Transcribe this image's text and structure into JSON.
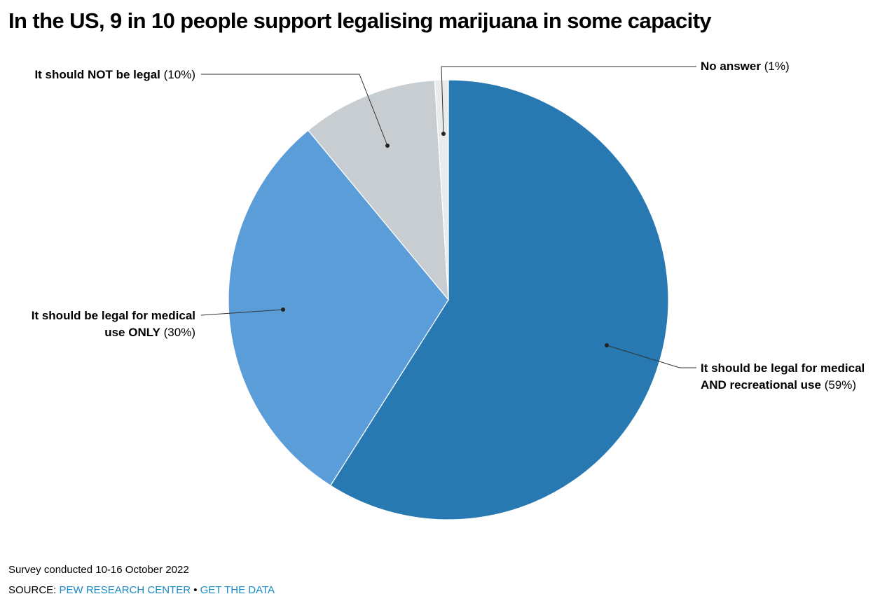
{
  "title": "In the US, 9 in 10 people support legalising marijuana in some capacity",
  "chart_data": {
    "type": "pie",
    "title": "In the US, 9 in 10 people support legalising marijuana in some capacity",
    "slices": [
      {
        "name": "It should be legal for medical AND recreational use",
        "label_bold_1": "It should be legal for medical",
        "label_bold_2": "AND recreational use",
        "pct_text": "(59%)",
        "value": 59,
        "color": "#2878b1"
      },
      {
        "name": "It should be legal for medical use ONLY",
        "label_bold_1": "It should be legal for medical",
        "label_bold_2": "use ONLY",
        "pct_text": "(30%)",
        "value": 30,
        "color": "#5a9dd9"
      },
      {
        "name": "It should NOT be legal",
        "label_bold_1": "It should NOT be legal",
        "pct_text": "(10%)",
        "value": 10,
        "color": "#c8cdd1"
      },
      {
        "name": "No answer",
        "label_bold_1": "No answer",
        "pct_text": "(1%)",
        "value": 1,
        "color": "#e9ebec"
      }
    ]
  },
  "footer": {
    "note": "Survey conducted 10-16 October 2022",
    "source_prefix": "SOURCE:",
    "source_name": "PEW RESEARCH CENTER",
    "separator": "•",
    "data_link": "GET THE DATA"
  }
}
